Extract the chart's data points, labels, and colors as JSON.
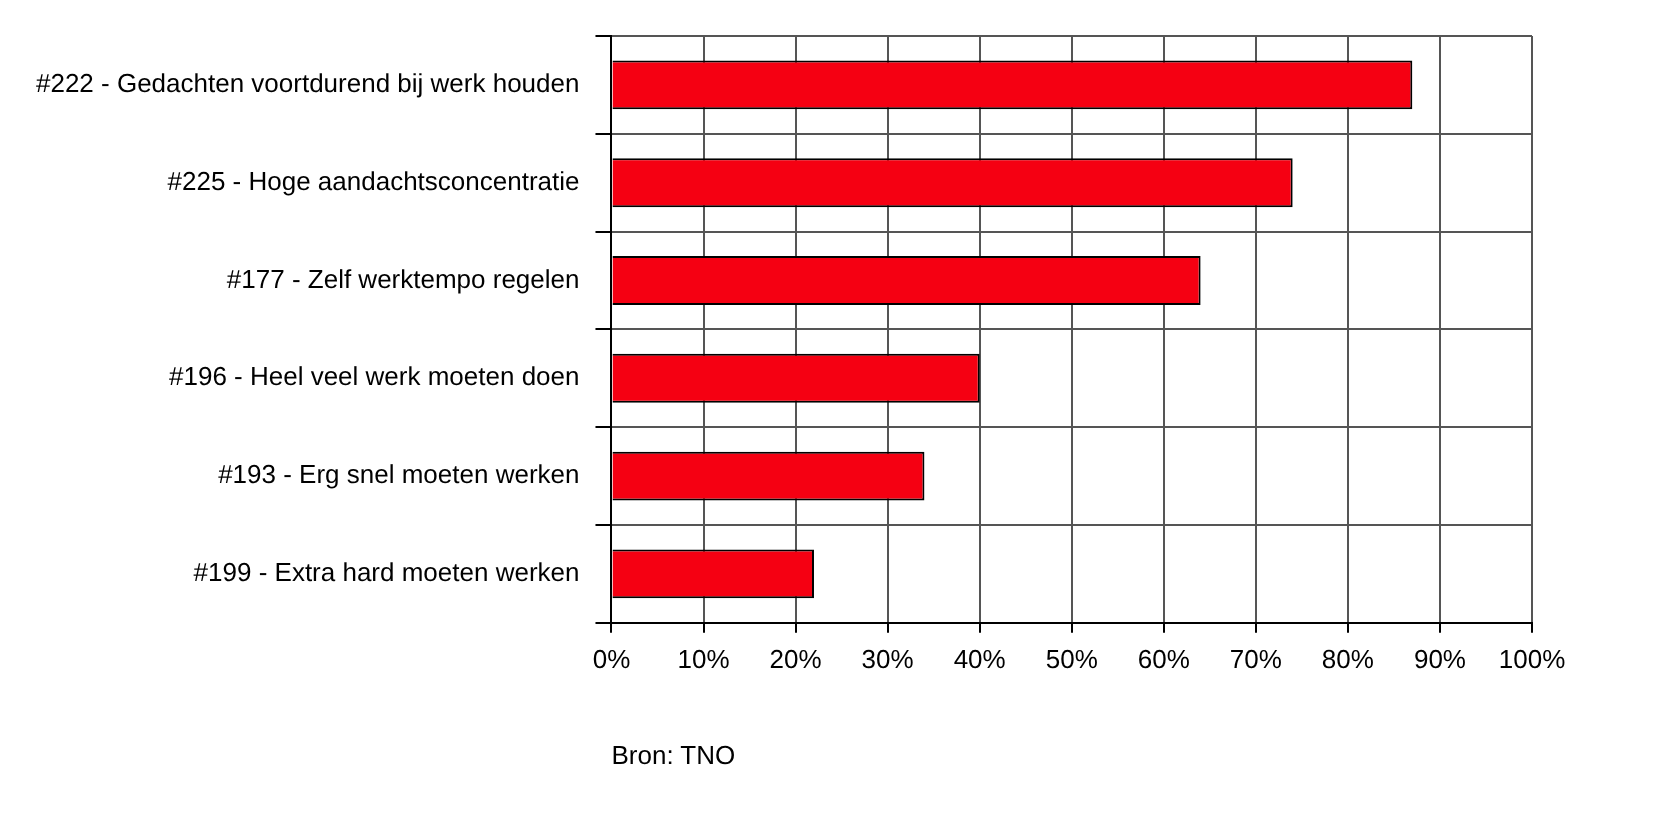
{
  "chart_data": {
    "type": "bar",
    "orientation": "horizontal",
    "categories": [
      "#222 - Gedachten voortdurend bij werk houden",
      "#225 - Hoge aandachtsconcentratie",
      "#177 - Zelf werktempo regelen",
      "#196 - Heel veel werk moeten doen",
      "#193 - Erg snel moeten werken",
      "#199 - Extra hard moeten werken"
    ],
    "values": [
      87,
      74,
      64,
      40,
      34,
      22
    ],
    "color": "#f50012",
    "xlim": [
      0,
      100
    ],
    "xticks": [
      {
        "value": 0,
        "label": "0%"
      },
      {
        "value": 10,
        "label": "10%"
      },
      {
        "value": 20,
        "label": "20%"
      },
      {
        "value": 30,
        "label": "30%"
      },
      {
        "value": 40,
        "label": "40%"
      },
      {
        "value": 50,
        "label": "50%"
      },
      {
        "value": 60,
        "label": "60%"
      },
      {
        "value": 70,
        "label": "70%"
      },
      {
        "value": 80,
        "label": "80%"
      },
      {
        "value": 90,
        "label": "90%"
      },
      {
        "value": 100,
        "label": "100%"
      }
    ],
    "grid": true,
    "legend": false,
    "annotations": [
      "Bron: TNO"
    ]
  }
}
